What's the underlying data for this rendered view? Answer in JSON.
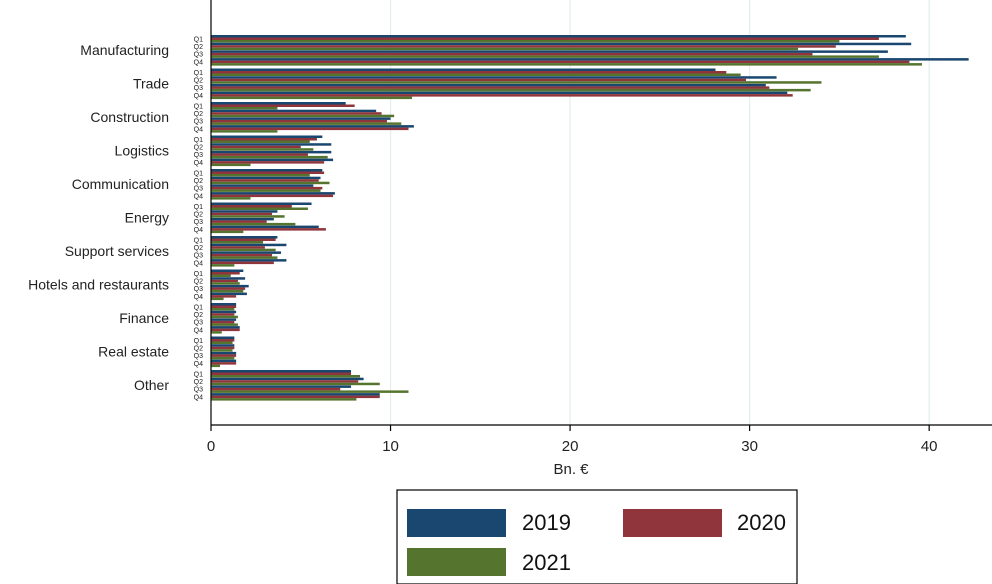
{
  "chart_data": {
    "type": "bar",
    "orientation": "horizontal",
    "title": "",
    "xlabel": "Bn. €",
    "ylabel": "",
    "xlim": [
      0,
      43.5
    ],
    "xticks": [
      0,
      10,
      20,
      30,
      40
    ],
    "grid": true,
    "legend_position": "bottom",
    "sub_categories": [
      "Q1",
      "Q2",
      "Q3",
      "Q4"
    ],
    "categories": [
      "Manufacturing",
      "Trade",
      "Construction",
      "Logistics",
      "Communication",
      "Energy",
      "Support services",
      "Hotels and restaurants",
      "Finance",
      "Real estate",
      "Other"
    ],
    "series": [
      {
        "name": "2019",
        "color": "#1a476f",
        "values": [
          [
            38.7,
            39.0,
            37.7,
            42.2
          ],
          [
            28.1,
            31.5,
            30.9,
            32.1
          ],
          [
            7.5,
            9.2,
            10.0,
            11.3
          ],
          [
            6.2,
            6.7,
            6.7,
            6.8
          ],
          [
            6.2,
            6.1,
            5.7,
            6.9
          ],
          [
            5.6,
            3.7,
            3.5,
            6.0
          ],
          [
            3.7,
            4.2,
            3.9,
            4.2
          ],
          [
            1.8,
            1.9,
            2.1,
            2.0
          ],
          [
            1.4,
            1.4,
            1.4,
            1.6
          ],
          [
            1.3,
            1.3,
            1.4,
            1.4
          ],
          [
            7.8,
            8.5,
            7.8,
            9.4
          ]
        ]
      },
      {
        "name": "2020",
        "color": "#90353b",
        "values": [
          [
            37.2,
            34.8,
            33.5,
            38.9
          ],
          [
            28.7,
            29.8,
            31.1,
            32.4
          ],
          [
            8.0,
            9.5,
            9.8,
            11.0
          ],
          [
            5.9,
            5.0,
            5.4,
            6.3
          ],
          [
            6.3,
            6.0,
            6.2,
            6.8
          ],
          [
            4.5,
            3.4,
            3.1,
            6.4
          ],
          [
            3.6,
            3.0,
            3.4,
            3.5
          ],
          [
            1.6,
            1.5,
            1.9,
            1.4
          ],
          [
            1.4,
            1.3,
            1.3,
            1.6
          ],
          [
            1.3,
            1.3,
            1.4,
            1.4
          ],
          [
            7.8,
            8.2,
            7.2,
            9.4
          ]
        ]
      },
      {
        "name": "2021",
        "color": "#55752f",
        "values": [
          [
            35.0,
            32.7,
            37.2,
            39.6
          ],
          [
            29.5,
            34.0,
            33.4,
            11.2
          ],
          [
            3.7,
            10.2,
            10.6,
            3.7
          ],
          [
            5.5,
            5.7,
            6.5,
            2.2
          ],
          [
            5.5,
            6.6,
            6.1,
            2.2
          ],
          [
            5.4,
            4.1,
            4.7,
            1.8
          ],
          [
            2.9,
            3.6,
            3.7,
            1.3
          ],
          [
            1.1,
            1.6,
            1.8,
            0.7
          ],
          [
            1.3,
            1.5,
            1.5,
            0.6
          ],
          [
            1.2,
            1.2,
            1.3,
            0.5
          ],
          [
            8.3,
            9.4,
            11.0,
            8.1
          ]
        ]
      }
    ]
  }
}
